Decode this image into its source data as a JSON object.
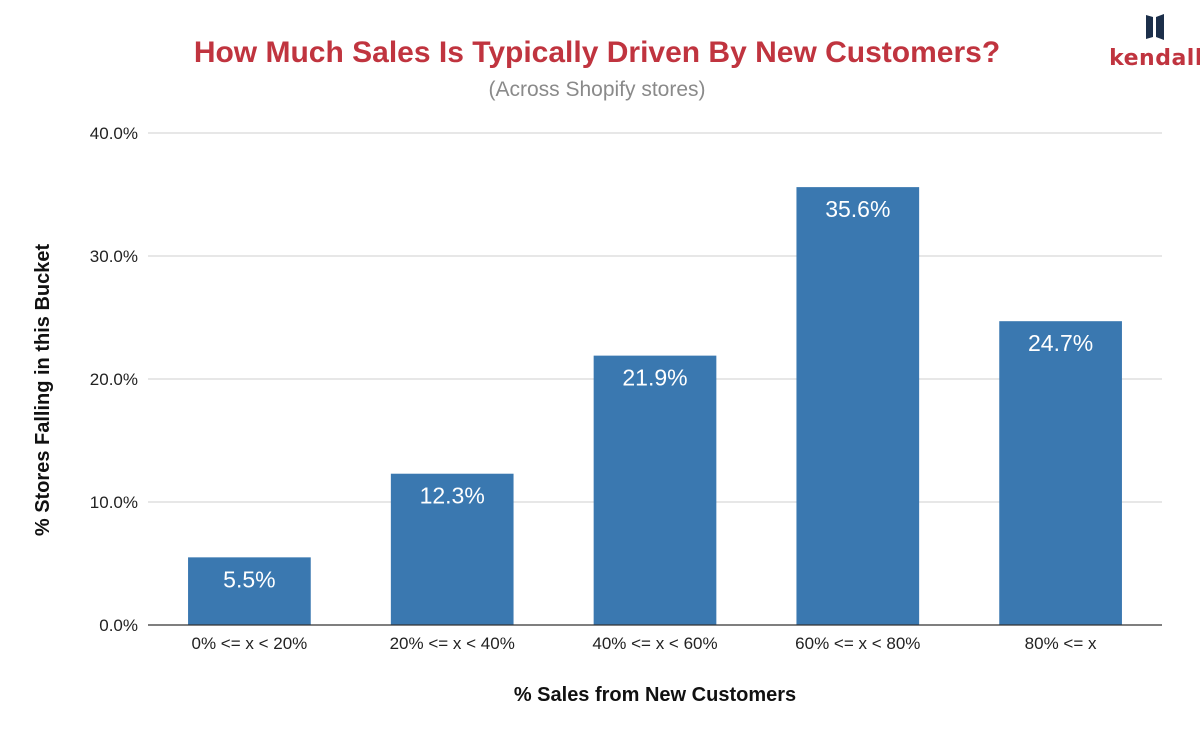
{
  "chart_data": {
    "type": "bar",
    "title": "How Much Sales Is Typically Driven By New Customers?",
    "subtitle": "(Across Shopify stores)",
    "xlabel": "% Sales from New Customers",
    "ylabel": "% Stores Falling in this Bucket",
    "categories": [
      "0% <= x < 20%",
      "20% <= x < 40%",
      "40% <= x < 60%",
      "60% <= x < 80%",
      "80% <= x"
    ],
    "values": [
      5.5,
      12.3,
      21.9,
      35.6,
      24.7
    ],
    "data_labels": [
      "5.5%",
      "12.3%",
      "21.9%",
      "35.6%",
      "24.7%"
    ],
    "y_ticks": [
      0,
      10,
      20,
      30,
      40
    ],
    "y_tick_labels": [
      "0.0%",
      "10.0%",
      "20.0%",
      "30.0%",
      "40.0%"
    ],
    "ylim": [
      0,
      40
    ],
    "grid": true,
    "legend": "none"
  },
  "logo": {
    "text": "kendall"
  },
  "colors": {
    "bar": "#3a78b0",
    "title": "#c0343f",
    "logo": "#c0343f",
    "logo_mark": "#1c2f4a"
  }
}
